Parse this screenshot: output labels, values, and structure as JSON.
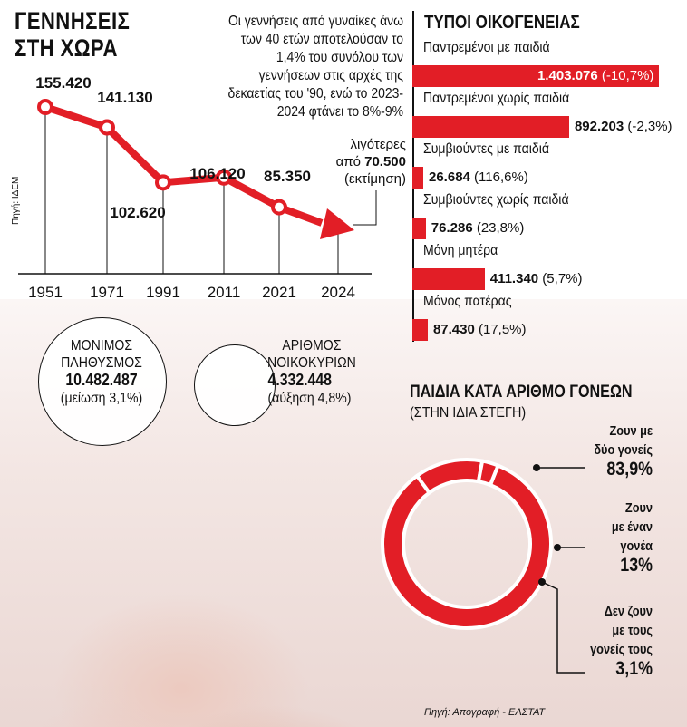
{
  "births": {
    "title_line1": "ΓΕΝΝΗΣΕΙΣ",
    "title_line2": "ΣΤΗ ΧΩΡΑ",
    "intro": "Οι γεννήσεις από γυναίκες άνω των 40 ετών αποτελούσαν το 1,4% του συνόλου των γεννήσεων στις αρχές της δεκαετίας του '90, ενώ το 2023-2024 φτάνει το 8%-9%",
    "source": "Πηγή: ΙΔΕΜ",
    "estimate_line1": "λιγότερες",
    "estimate_line2_prefix": "από",
    "estimate_value": "70.500",
    "estimate_line3": "(εκτίμηση)"
  },
  "families": {
    "title": "ΤΥΠΟΙ ΟΙΚΟΓΕΝΕΙΑΣ",
    "items": [
      {
        "label": "Παντρεμένοι με παιδιά",
        "value": 1403076,
        "value_text": "1.403.076",
        "change": "(-10,7%)"
      },
      {
        "label": "Παντρεμένοι χωρίς παιδιά",
        "value": 892203,
        "value_text": "892.203",
        "change": "(-2,3%)"
      },
      {
        "label": "Συμβιούντες με παιδιά",
        "value": 26684,
        "value_text": "26.684",
        "change": "(116,6%)"
      },
      {
        "label": "Συμβιούντες χωρίς παιδιά",
        "value": 76286,
        "value_text": "76.286",
        "change": "(23,8%)"
      },
      {
        "label": "Μόνη μητέρα",
        "value": 411340,
        "value_text": "411.340",
        "change": "(5,7%)"
      },
      {
        "label": "Μόνος πατέρας",
        "value": 87430,
        "value_text": "87.430",
        "change": "(17,5%)"
      }
    ]
  },
  "population": {
    "label_line1": "ΜΟΝΙΜΟΣ",
    "label_line2": "ΠΛΗΘΥΣΜΟΣ",
    "value": "10.482.487",
    "change": "(μείωση 3,1%)"
  },
  "households": {
    "label_line1": "ΑΡΙΘΜΟΣ",
    "label_line2": "ΝΟΙΚΟΚΥΡΙΩΝ",
    "value": "4.332.448",
    "change": "(αύξηση 4,8%)"
  },
  "children": {
    "title": "ΠΑΙΔΙΑ ΚΑΤΑ ΑΡΙΘΜΟ ΓΟΝΕΩΝ",
    "subtitle": "(ΣΤΗΝ ΙΔΙΑ ΣΤΕΓΗ)",
    "seg1_line1": "Ζουν με",
    "seg1_line2": "δύο γονείς",
    "seg1_pct": "83,9%",
    "seg2_line1": "Ζουν",
    "seg2_line2": "με έναν",
    "seg2_line3": "γονέα",
    "seg2_pct": "13%",
    "seg3_line1": "Δεν ζουν",
    "seg3_line2": "με τους",
    "seg3_line3": "γονείς τους",
    "seg3_pct": "3,1%",
    "source": "Πηγή: Απογραφή - ΕΛΣΤΑΤ"
  },
  "colors": {
    "accent": "#e21e26",
    "text": "#111111"
  },
  "chart_data": [
    {
      "type": "line",
      "title": "ΓΕΝΝΗΣΕΙΣ ΣΤΗ ΧΩΡΑ",
      "categories": [
        "1951",
        "1971",
        "1991",
        "2011",
        "2021",
        "2024"
      ],
      "series": [
        {
          "values": [
            155420,
            141130,
            102620,
            106120,
            85350,
            70500
          ]
        }
      ],
      "data_labels": [
        "155.420",
        "141.130",
        "102.620",
        "106.120",
        "85.350"
      ],
      "ylim": [
        55000,
        165000
      ],
      "grid": false
    },
    {
      "type": "bar",
      "orientation": "horizontal",
      "title": "ΤΥΠΟΙ ΟΙΚΟΓΕΝΕΙΑΣ",
      "categories": [
        "Παντρεμένοι με παιδιά",
        "Παντρεμένοι χωρίς παιδιά",
        "Συμβιούντες με παιδιά",
        "Συμβιούντες χωρίς παιδιά",
        "Μόνη μητέρα",
        "Μόνος πατέρας"
      ],
      "values": [
        1403076,
        892203,
        26684,
        76286,
        411340,
        87430
      ]
    },
    {
      "type": "pie",
      "title": "ΠΑΙΔΙΑ ΚΑΤΑ ΑΡΙΘΜΟ ΓΟΝΕΩΝ",
      "categories": [
        "Ζουν με δύο γονείς",
        "Ζουν με έναν γονέα",
        "Δεν ζουν με τους γονείς τους"
      ],
      "values": [
        83.9,
        13,
        3.1
      ]
    }
  ]
}
